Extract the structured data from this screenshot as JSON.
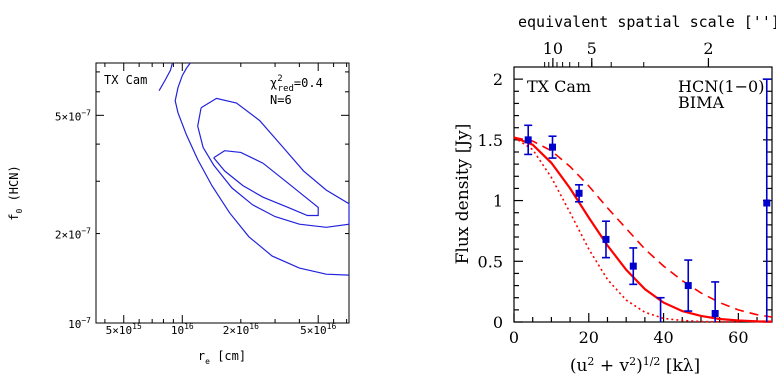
{
  "chart_data": [
    {
      "type": "contour",
      "xlabel_main": "r",
      "xlabel_sub": "e",
      "xlabel_unit": " [cm]",
      "ylabel_main": "f",
      "ylabel_sub": "0",
      "ylabel_unit": " (HCN)",
      "xscale": "log",
      "yscale": "log",
      "xlim": [
        3600000000000000.0,
        7.2e+16
      ],
      "ylim": [
        1e-07,
        7.5e-07
      ],
      "x_ticks": [
        {
          "value": 5000000000000000.0,
          "mant": "5×10",
          "exp": "15"
        },
        {
          "value": 1e+16,
          "mant": "10",
          "exp": "16"
        },
        {
          "value": 2e+16,
          "mant": "2×10",
          "exp": "16"
        },
        {
          "value": 5e+16,
          "mant": "5×10",
          "exp": "16"
        }
      ],
      "y_ticks": [
        {
          "value": 1e-07,
          "mant": "10",
          "exp": "−7"
        },
        {
          "value": 2e-07,
          "mant": "2×10",
          "exp": "−7"
        },
        {
          "value": 5e-07,
          "mant": "5×10",
          "exp": "−7"
        }
      ],
      "annotations": {
        "object": "TX Cam",
        "chi_symbol": "χ",
        "chi_sup": "2",
        "chi_sub": "red",
        "chi_value": "=0.4",
        "n_points": "N=6"
      },
      "contours": [
        {
          "level": "inner",
          "x": [
            1.45e+16,
            1.65e+16,
            2e+16,
            2.6e+16,
            3.4e+16,
            4.3e+16,
            5e+16,
            5e+16,
            4.4e+16,
            3.5e+16,
            2.6e+16,
            2.05e+16,
            1.65e+16,
            1.45e+16
          ],
          "y": [
            3.6e-07,
            3.8e-07,
            3.75e-07,
            3.45e-07,
            3e-07,
            2.65e-07,
            2.45e-07,
            2.3e-07,
            2.3e-07,
            2.45e-07,
            2.65e-07,
            2.9e-07,
            3.25e-07,
            3.6e-07
          ]
        },
        {
          "level": "middle",
          "x": [
            1.25e+16,
            1.5e+16,
            1.9e+16,
            2.5e+16,
            3.3e+16,
            4.2e+16,
            5.5e+16,
            7.2e+16,
            7.2e+16,
            5.5e+16,
            4e+16,
            3e+16,
            2.3e+16,
            1.8e+16,
            1.45e+16,
            1.28e+16,
            1.2e+16,
            1.25e+16
          ],
          "y": [
            5.3e-07,
            5.7e-07,
            5.5e-07,
            4.8e-07,
            3.9e-07,
            3.25e-07,
            2.8e-07,
            2.52e-07,
            2.15e-07,
            2.1e-07,
            2.15e-07,
            2.28e-07,
            2.5e-07,
            2.85e-07,
            3.4e-07,
            3.9e-07,
            4.6e-07,
            5.3e-07
          ]
        },
        {
          "level": "outer",
          "x": [
            7.2e+16,
            5.5e+16,
            4e+16,
            2.9e+16,
            2.2e+16,
            1.75e+16,
            1.42e+16,
            1.2e+16,
            1.05e+16,
            9500000000000000.0,
            9200000000000000.0,
            9500000000000000.0,
            1e+16,
            1.05e+16,
            1.1e+16
          ],
          "y": [
            1.45e-07,
            1.46e-07,
            1.53e-07,
            1.68e-07,
            1.95e-07,
            2.35e-07,
            2.9e-07,
            3.55e-07,
            4.3e-07,
            5.1e-07,
            5.6e-07,
            6.2e-07,
            6.8e-07,
            7.2e-07,
            7.5e-07
          ]
        },
        {
          "level": "outer",
          "x": [
            8900000000000000.0,
            8700000000000000.0,
            8200000000000000.0,
            7600000000000000.0
          ],
          "y": [
            7.5e-07,
            7.1e-07,
            6.6e-07,
            6.05e-07
          ]
        }
      ]
    },
    {
      "type": "scatter+line",
      "top_axis_label": "equivalent spatial scale ['']",
      "xlabel_parts": {
        "open": "(u",
        "a": "2",
        "plus": " + v",
        "b": "2",
        "close": ")",
        "pow": "1/2",
        "unit": " [kλ]"
      },
      "ylabel": "Flux density [Jy]",
      "xlim": [
        0,
        69
      ],
      "ylim": [
        0,
        2.1
      ],
      "x_ticks": [
        0,
        20,
        40,
        60
      ],
      "y_ticks": [
        {
          "value": 0,
          "label": "0"
        },
        {
          "value": 0.5,
          "label": "0.5"
        },
        {
          "value": 1,
          "label": "1"
        },
        {
          "value": 1.5,
          "label": "1.5"
        },
        {
          "value": 2,
          "label": "2"
        }
      ],
      "top_ticks": [
        {
          "label": "10",
          "x": 10.4
        },
        {
          "label": "5",
          "x": 20.8
        },
        {
          "label": "2",
          "x": 52.0
        }
      ],
      "annotations": {
        "object": "TX Cam",
        "line": "HCN(1−0)",
        "telescope": "BIMA"
      },
      "colors": {
        "model": "#ff0000",
        "data": "#0000cc"
      },
      "points": [
        {
          "x": 3.8,
          "y": 1.5,
          "err": 0.12
        },
        {
          "x": 10.3,
          "y": 1.44,
          "err": 0.09
        },
        {
          "x": 17.4,
          "y": 1.06,
          "err": 0.07
        },
        {
          "x": 24.6,
          "y": 0.68,
          "err": 0.15
        },
        {
          "x": 31.9,
          "y": 0.46,
          "err": 0.15
        },
        {
          "x": 39.2,
          "y": -0.05,
          "err": 0.25
        },
        {
          "x": 46.6,
          "y": 0.3,
          "err": 0.21
        },
        {
          "x": 53.8,
          "y": 0.07,
          "err": 0.26
        },
        {
          "x": 67.6,
          "y": 0.98,
          "err": 1.02
        }
      ],
      "series": [
        {
          "style": "solid",
          "x": [
            0,
            5,
            10,
            15,
            20,
            25,
            30,
            35,
            40,
            45,
            50,
            55,
            60,
            65,
            69
          ],
          "y": [
            1.52,
            1.46,
            1.31,
            1.1,
            0.86,
            0.63,
            0.43,
            0.27,
            0.16,
            0.09,
            0.05,
            0.025,
            0.012,
            0.005,
            0.003
          ]
        },
        {
          "style": "dashed",
          "x": [
            0,
            5,
            10,
            15,
            20,
            25,
            30,
            35,
            40,
            45,
            50,
            55,
            60,
            65,
            69
          ],
          "y": [
            1.52,
            1.49,
            1.41,
            1.28,
            1.12,
            0.94,
            0.77,
            0.6,
            0.46,
            0.34,
            0.24,
            0.16,
            0.1,
            0.06,
            0.04
          ]
        },
        {
          "style": "dotted",
          "x": [
            0,
            5,
            10,
            15,
            20,
            25,
            30,
            35,
            40,
            45,
            50,
            55,
            60
          ],
          "y": [
            1.52,
            1.42,
            1.19,
            0.9,
            0.6,
            0.35,
            0.18,
            0.08,
            0.03,
            0.012,
            0.004,
            0.001,
            0
          ]
        }
      ]
    }
  ]
}
